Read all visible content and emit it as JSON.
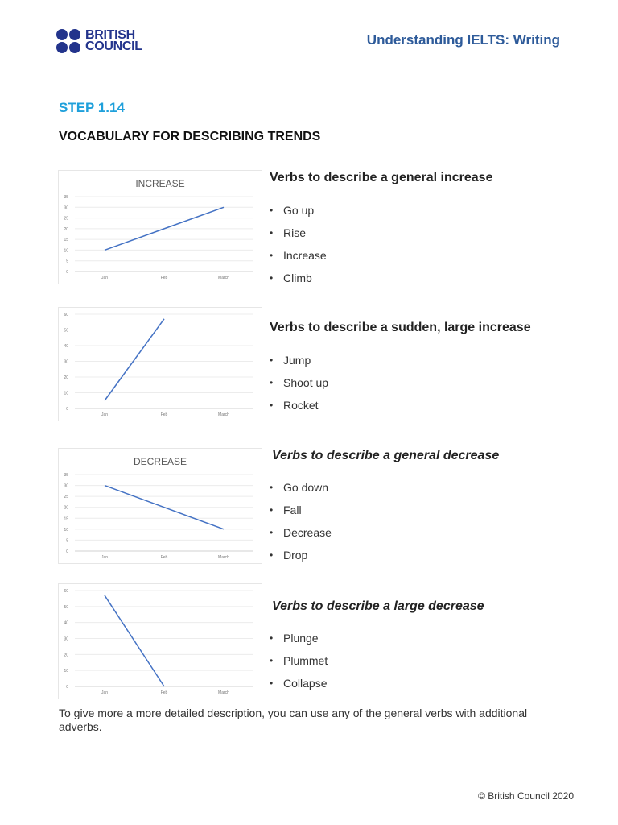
{
  "header": {
    "logo_line1": "BRITISH",
    "logo_line2": "COUNCIL",
    "title": "Understanding IELTS: Writing"
  },
  "step": "STEP 1.14",
  "section_title": "VOCABULARY FOR DESCRIBING TRENDS",
  "blocks": [
    {
      "heading": "Verbs to describe a general increase",
      "items": [
        "Go up",
        "Rise",
        "Increase",
        "Climb"
      ]
    },
    {
      "heading": "Verbs to describe a sudden, large increase",
      "items": [
        "Jump",
        "Shoot up",
        "Rocket"
      ]
    },
    {
      "heading": "Verbs to describe a general decrease",
      "items": [
        "Go down",
        "Fall",
        "Decrease",
        "Drop"
      ]
    },
    {
      "heading": "Verbs to describe a large decrease",
      "items": [
        "Plunge",
        "Plummet",
        "Collapse"
      ]
    }
  ],
  "footer_note": "To give more a more detailed description, you can use any of the general verbs with additional adverbs.",
  "copyright": "© British Council 2020",
  "colors": {
    "brand": "#23348c",
    "accent": "#1fa0db",
    "line": "#4472c4"
  },
  "chart_data": [
    {
      "type": "line",
      "title": "INCREASE",
      "categories": [
        "Jan",
        "Feb",
        "March"
      ],
      "values": [
        10,
        20,
        30
      ],
      "ylim": [
        0,
        35
      ],
      "yticks": [
        0,
        5,
        10,
        15,
        20,
        25,
        30,
        35
      ],
      "grid": true
    },
    {
      "type": "line",
      "title": "",
      "categories": [
        "Jan",
        "Feb",
        "March"
      ],
      "values": [
        5,
        57,
        null
      ],
      "ylim": [
        0,
        60
      ],
      "yticks": [
        0,
        10,
        20,
        30,
        40,
        50,
        60
      ],
      "grid": true
    },
    {
      "type": "line",
      "title": "DECREASE",
      "categories": [
        "Jan",
        "Feb",
        "March"
      ],
      "values": [
        30,
        20,
        10
      ],
      "ylim": [
        0,
        35
      ],
      "yticks": [
        0,
        5,
        10,
        15,
        20,
        25,
        30,
        35
      ],
      "grid": true
    },
    {
      "type": "line",
      "title": "",
      "categories": [
        "Jan",
        "Feb",
        "March"
      ],
      "values": [
        57,
        0,
        null
      ],
      "ylim": [
        0,
        60
      ],
      "yticks": [
        0,
        10,
        20,
        30,
        40,
        50,
        60
      ],
      "grid": true
    }
  ]
}
